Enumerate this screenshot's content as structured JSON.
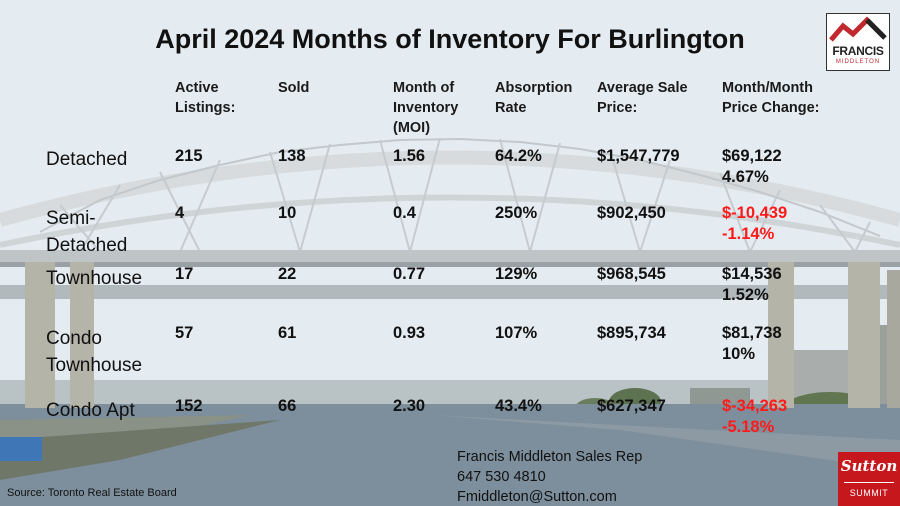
{
  "title": "April 2024 Months of Inventory For Burlington",
  "headers": {
    "active": [
      "Active",
      "Listings:"
    ],
    "sold": [
      "Sold"
    ],
    "moi": [
      "Month of",
      "Inventory",
      "(MOI)"
    ],
    "absorption": [
      "Absorption",
      "Rate"
    ],
    "avg_price": [
      "Average Sale",
      "Price:"
    ],
    "change": [
      "Month/Month",
      "Price Change:"
    ]
  },
  "rows": [
    {
      "label": [
        "Detached"
      ],
      "active": "215",
      "sold": "138",
      "moi": "1.56",
      "absorption": "64.2%",
      "avg_price": "$1,547,779",
      "change_amount": "$69,122",
      "change_pct": "4.67%",
      "negative": false
    },
    {
      "label": [
        "Semi-",
        "Detached"
      ],
      "active": "4",
      "sold": "10",
      "moi": "0.4",
      "absorption": "250%",
      "avg_price": "$902,450",
      "change_amount": "$-10,439",
      "change_pct": "-1.14%",
      "negative": true
    },
    {
      "label": [
        "Townhouse"
      ],
      "active": "17",
      "sold": "22",
      "moi": "0.77",
      "absorption": "129%",
      "avg_price": "$968,545",
      "change_amount": "$14,536",
      "change_pct": "1.52%",
      "negative": false
    },
    {
      "label": [
        "Condo",
        "Townhouse"
      ],
      "active": "57",
      "sold": "61",
      "moi": "0.93",
      "absorption": "107%",
      "avg_price": "$895,734",
      "change_amount": "$81,738",
      "change_pct": "10%",
      "negative": false
    },
    {
      "label": [
        "Condo Apt"
      ],
      "active": "152",
      "sold": "66",
      "moi": "2.30",
      "absorption": "43.4%",
      "avg_price": "$627,347",
      "change_amount": "$-34,263",
      "change_pct": "-5.18%",
      "negative": true
    }
  ],
  "contact": {
    "name": "Francis Middleton Sales Rep",
    "phone": "647 530 4810",
    "email": "Fmiddleton@Sutton.com"
  },
  "source": "Source: Toronto Real Estate Board",
  "brand_logo": {
    "name": "FRANCIS",
    "sub": "MIDDLETON"
  },
  "sutton_logo": {
    "word": "Sutton",
    "sub": "SUMMIT"
  },
  "colors": {
    "negative": "#ff1a1a",
    "text": "#111111",
    "brand_red": "#c6171d"
  }
}
